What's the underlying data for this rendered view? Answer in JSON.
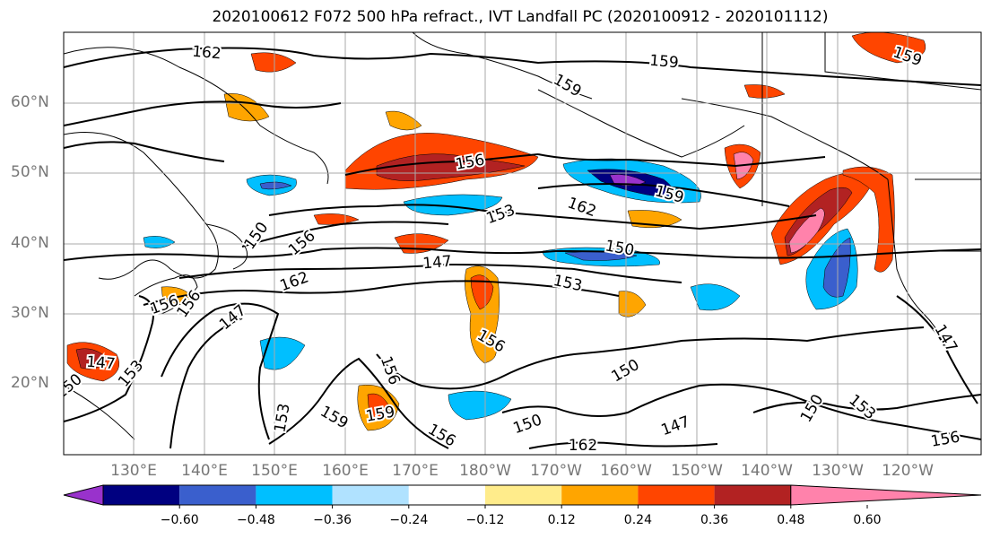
{
  "title": "2020100612 F072 500 hPa refract., IVT Landfall PC (2020100912 - 2020101112)",
  "lat_labels": [
    "60°N",
    "50°N",
    "40°N",
    "30°N",
    "20°N"
  ],
  "lon_labels": [
    "130°E",
    "140°E",
    "150°E",
    "160°E",
    "170°E",
    "180°W",
    "170°W",
    "160°W",
    "150°W",
    "140°W",
    "130°W",
    "120°W"
  ],
  "colorbar": {
    "tick_labels": [
      "−0.60",
      "−0.48",
      "−0.36",
      "−0.24",
      "−0.12",
      "0.12",
      "0.24",
      "0.36",
      "0.48",
      "0.60"
    ],
    "colors": [
      "#9932cc",
      "#000080",
      "#3a5fcd",
      "#00bfff",
      "#b0e2ff",
      "#ffffff",
      "#ffec8b",
      "#ffa500",
      "#ff4500",
      "#b22222",
      "#ff82ab"
    ]
  },
  "contour_labels": [
    "162",
    "159",
    "159",
    "159",
    "156",
    "159",
    "162",
    "153",
    "150",
    "156",
    "150",
    "147",
    "153",
    "162",
    "156",
    "147",
    "147",
    "156",
    "156",
    "159",
    "153",
    "156",
    "150",
    "150",
    "147",
    "150",
    "153",
    "156",
    "156",
    "147",
    "150",
    "159",
    "153",
    "162"
  ]
}
